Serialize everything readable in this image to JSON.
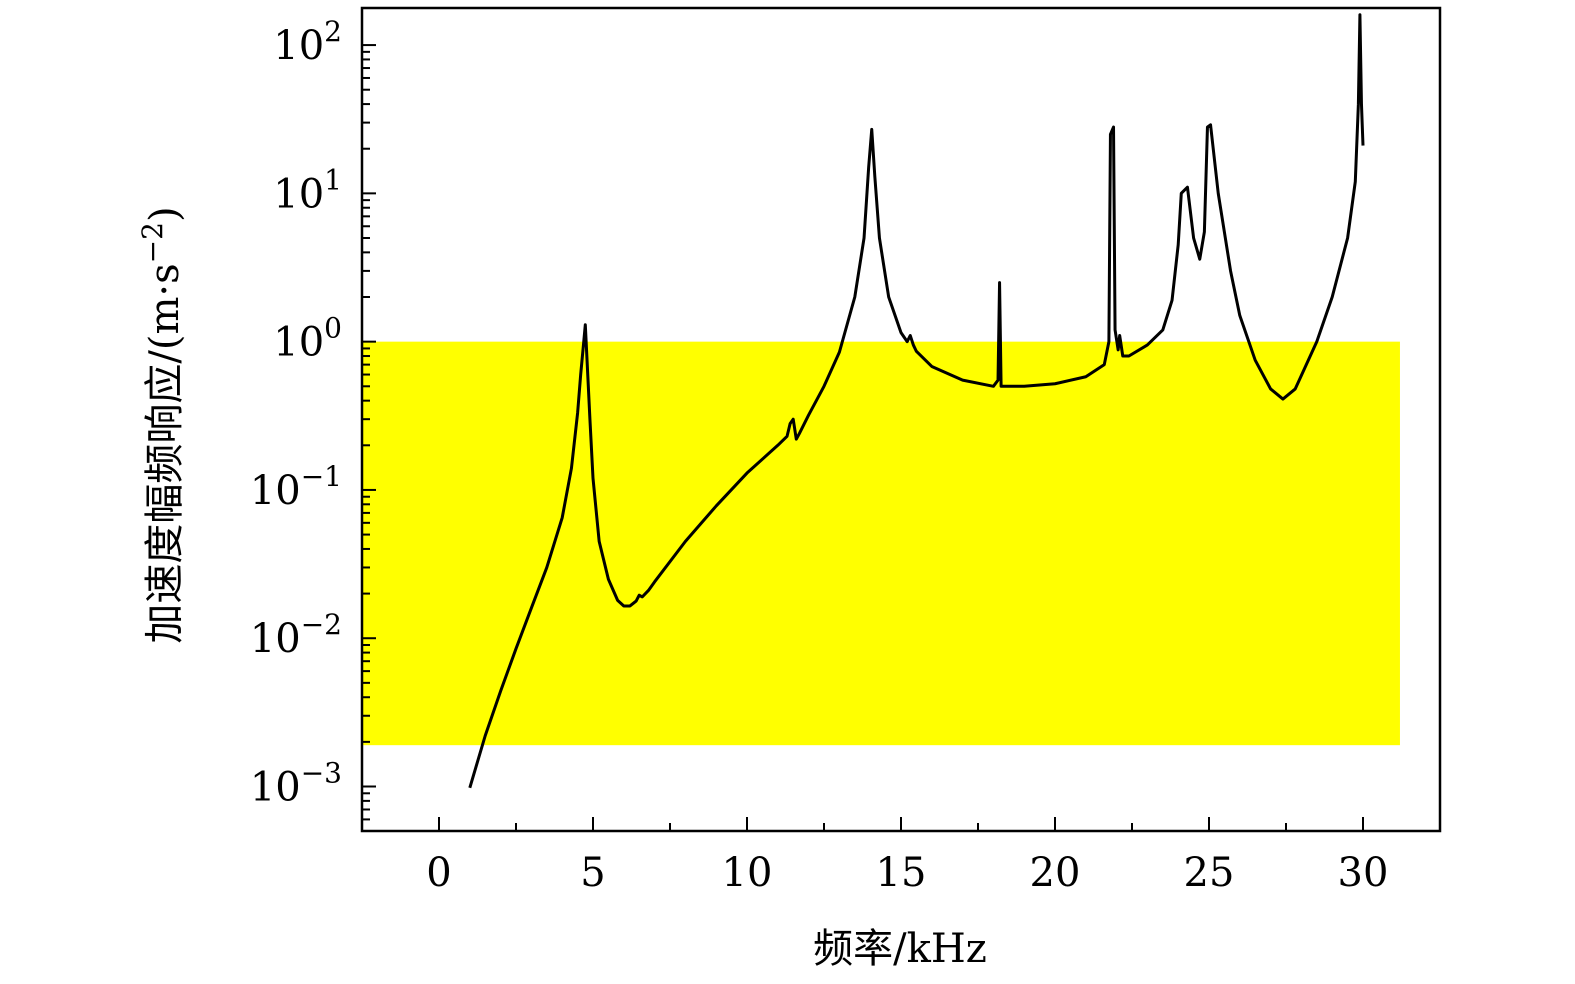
{
  "chart_data": {
    "type": "line",
    "title": "",
    "xlabel": "频率/kHz",
    "ylabel": "加速度幅频响应/(m·s",
    "ylabel_sup": "−2",
    "ylabel_close": ")",
    "y_scale": "log",
    "xlim": [
      -2.5,
      32.5
    ],
    "ylim_log10": [
      -3.3,
      2.25
    ],
    "x_ticks": [
      0,
      5,
      10,
      15,
      20,
      25,
      30
    ],
    "x_tick_labels": [
      "0",
      "5",
      "10",
      "15",
      "20",
      "25",
      "30"
    ],
    "y_ticks_log10": [
      -3,
      -2,
      -1,
      0,
      1,
      2
    ],
    "y_tick_base": "10",
    "y_tick_exponents": [
      "−3",
      "−2",
      "−1",
      "0",
      "1",
      "2"
    ],
    "grid": false,
    "highlight_band": {
      "x": [
        -2.5,
        31.2
      ],
      "y": [
        0.0019,
        1.0
      ],
      "color": "#ffff00"
    },
    "series": [
      {
        "color": "#000000",
        "x": [
          1.0,
          1.5,
          2.0,
          2.5,
          3.0,
          3.5,
          4.0,
          4.3,
          4.5,
          4.6,
          4.7,
          4.75,
          4.8,
          4.9,
          5.0,
          5.2,
          5.5,
          5.8,
          6.0,
          6.2,
          6.4,
          6.5,
          6.6,
          6.8,
          7.0,
          8.0,
          9.0,
          10.0,
          11.0,
          11.3,
          11.4,
          11.5,
          11.6,
          11.7,
          12.0,
          12.5,
          13.0,
          13.5,
          13.8,
          13.95,
          14.05,
          14.15,
          14.3,
          14.6,
          15.0,
          15.2,
          15.3,
          15.4,
          15.5,
          16.0,
          17.0,
          18.0,
          18.15,
          18.2,
          18.25,
          18.35,
          19.0,
          20.0,
          21.0,
          21.6,
          21.75,
          21.8,
          21.9,
          21.95,
          22.05,
          22.1,
          22.2,
          22.4,
          23.0,
          23.5,
          23.8,
          24.0,
          24.1,
          24.3,
          24.5,
          24.7,
          24.85,
          24.95,
          25.05,
          25.3,
          25.7,
          26.0,
          26.5,
          27.0,
          27.4,
          27.8,
          28.5,
          29.0,
          29.5,
          29.75,
          29.85,
          29.9,
          29.95,
          30.0
        ],
        "y": [
          0.00098,
          0.0022,
          0.0044,
          0.0085,
          0.016,
          0.03,
          0.065,
          0.14,
          0.33,
          0.6,
          1.0,
          1.3,
          0.8,
          0.3,
          0.12,
          0.045,
          0.025,
          0.018,
          0.0165,
          0.0165,
          0.0178,
          0.0195,
          0.019,
          0.021,
          0.024,
          0.045,
          0.078,
          0.13,
          0.2,
          0.23,
          0.28,
          0.3,
          0.22,
          0.24,
          0.32,
          0.5,
          0.85,
          2.0,
          5.0,
          15.0,
          27.0,
          13.0,
          5.0,
          2.0,
          1.15,
          1.0,
          1.1,
          0.95,
          0.86,
          0.68,
          0.55,
          0.5,
          0.55,
          2.5,
          0.5,
          0.5,
          0.5,
          0.52,
          0.58,
          0.7,
          1.0,
          25.0,
          28.0,
          1.2,
          0.88,
          1.1,
          0.8,
          0.8,
          0.95,
          1.2,
          1.9,
          4.5,
          10.0,
          11.0,
          5.0,
          3.6,
          5.5,
          28.0,
          29.0,
          10.0,
          3.0,
          1.5,
          0.75,
          0.48,
          0.41,
          0.48,
          1.0,
          2.0,
          5.0,
          12.0,
          40.0,
          160.0,
          40.0,
          21.0
        ]
      }
    ]
  }
}
